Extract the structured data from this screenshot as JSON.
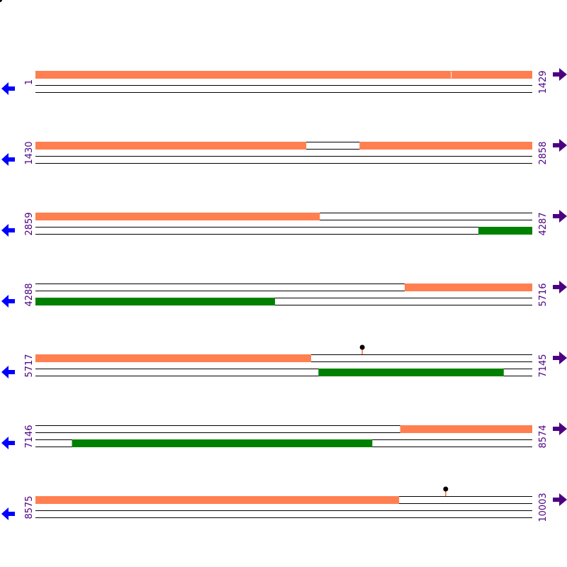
{
  "colors": {
    "forward_feature": "#ff7f50",
    "reverse_feature": "#008000",
    "track_line": "#000000",
    "label": "#4b0082",
    "left_arrow": "#0000ff",
    "right_arrow": "#4b0082",
    "marker": "#000000",
    "marker_stem": "#ff4500"
  },
  "icons": {
    "left": "arrow-left-icon",
    "right": "arrow-right-icon",
    "marker": "pin-marker-icon"
  },
  "rows": [
    {
      "start": 1,
      "end": 1429,
      "start_label": "1",
      "end_label": "1429",
      "forward": [
        [
          1,
          1429
        ]
      ],
      "forward_breaks": [
        1197
      ],
      "reverse": [],
      "markers": []
    },
    {
      "start": 1430,
      "end": 2858,
      "start_label": "1430",
      "end_label": "2858",
      "forward": [
        [
          1430,
          2208
        ],
        [
          2362,
          2858
        ]
      ],
      "forward_breaks": [],
      "reverse": [],
      "markers": []
    },
    {
      "start": 2859,
      "end": 4287,
      "start_label": "2859",
      "end_label": "4287",
      "forward": [
        [
          2859,
          3676
        ]
      ],
      "forward_breaks": [],
      "reverse": [
        [
          4133,
          4287
        ]
      ],
      "markers": []
    },
    {
      "start": 4288,
      "end": 5716,
      "start_label": "4288",
      "end_label": "5716",
      "forward": [
        [
          5350,
          5716
        ]
      ],
      "forward_breaks": [],
      "reverse": [
        [
          4288,
          4976
        ]
      ],
      "markers": []
    },
    {
      "start": 5717,
      "end": 7145,
      "start_label": "5717",
      "end_label": "7145",
      "forward": [
        [
          5717,
          6509
        ]
      ],
      "forward_breaks": [],
      "reverse": [
        [
          6531,
          7063
        ]
      ],
      "markers": [
        6657
      ]
    },
    {
      "start": 7146,
      "end": 8574,
      "start_label": "7146",
      "end_label": "8574",
      "forward": [
        [
          8195,
          8574
        ]
      ],
      "forward_breaks": [],
      "reverse": [
        [
          7251,
          8114
        ]
      ],
      "markers": []
    },
    {
      "start": 8575,
      "end": 10003,
      "start_label": "8575",
      "end_label": "10003",
      "forward": [
        [
          8575,
          9620
        ]
      ],
      "forward_breaks": [],
      "reverse": [],
      "markers": [
        9755
      ]
    }
  ]
}
